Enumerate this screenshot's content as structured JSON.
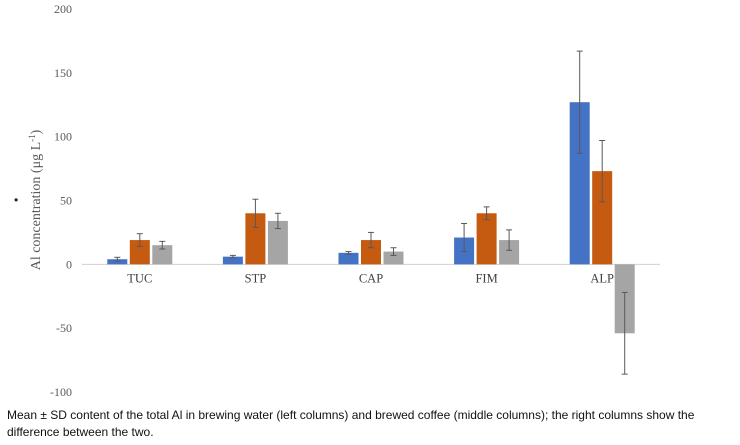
{
  "bullet": "•",
  "caption": "Mean ± SD content of the total Al in brewing water (left columns) and brewed coffee (middle columns); the right columns show the difference between the two.",
  "colors": {
    "water": "#4472C4",
    "coffee": "#C55A11",
    "difference": "#A5A5A5",
    "error": "#595959"
  },
  "chart_data": {
    "type": "bar",
    "title": "",
    "xlabel": "",
    "ylabel": "Al concentration (μg L",
    "ylabel_sup": "-1",
    "ylabel_end": ")",
    "ylim": [
      -100,
      200
    ],
    "yticks": [
      -100,
      -50,
      0,
      50,
      100,
      150,
      200
    ],
    "grid": false,
    "legend": "none",
    "categories": [
      "TUC",
      "STP",
      "CAP",
      "FIM",
      "ALP"
    ],
    "series": [
      {
        "key": "water",
        "values": [
          4,
          6,
          9,
          21,
          127
        ],
        "errors": [
          1.5,
          1,
          1,
          11,
          40
        ]
      },
      {
        "key": "coffee",
        "values": [
          19,
          40,
          19,
          40,
          73
        ],
        "errors": [
          5,
          11,
          6,
          5,
          24
        ]
      },
      {
        "key": "difference",
        "values": [
          15,
          34,
          10,
          19,
          -54
        ],
        "errors": [
          3,
          6,
          3,
          8,
          32
        ]
      }
    ]
  }
}
